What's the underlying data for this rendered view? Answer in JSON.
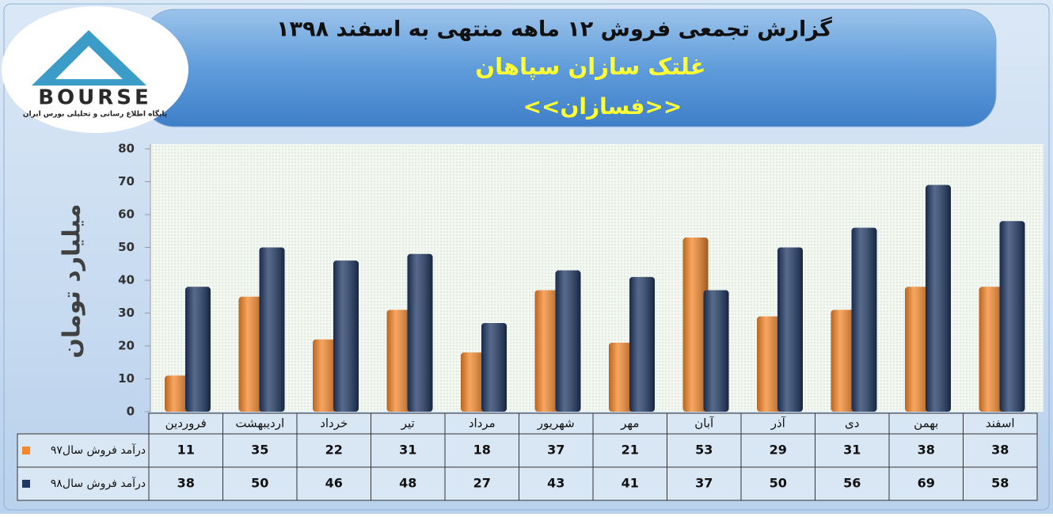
{
  "chart_data": {
    "type": "bar",
    "title": "گزارش تجمعی فروش  ۱۲ ماهه منتهی به اسفند ۱۳۹۸",
    "subtitles": [
      "غلتک سازان سپاهان",
      "<<فسازان>>"
    ],
    "y_label": "میلیارد تومان",
    "categories": [
      "فروردین",
      "اردیبهشت",
      "خرداد",
      "تیر",
      "مرداد",
      "شهریور",
      "مهر",
      "آبان",
      "آذر",
      "دی",
      "بهمن",
      "اسفند"
    ],
    "series": [
      {
        "name": "درآمد فروش سال۹۷",
        "color": "#f5872a",
        "values": [
          11,
          35,
          22,
          31,
          18,
          37,
          21,
          53,
          29,
          31,
          38,
          38
        ]
      },
      {
        "name": "درآمد فروش سال۹۸",
        "color": "#1f3864",
        "values": [
          38,
          50,
          46,
          48,
          27,
          43,
          41,
          37,
          50,
          56,
          69,
          58
        ]
      }
    ],
    "ylim": [
      0,
      80
    ],
    "yticks": [
      0,
      10,
      20,
      30,
      40,
      50,
      60,
      70,
      80
    ],
    "grid": false
  },
  "logo": {
    "name": "BOURSE",
    "tagline": "پایگاه اطلاع رسانی و تحلیلی بورس ایران"
  }
}
